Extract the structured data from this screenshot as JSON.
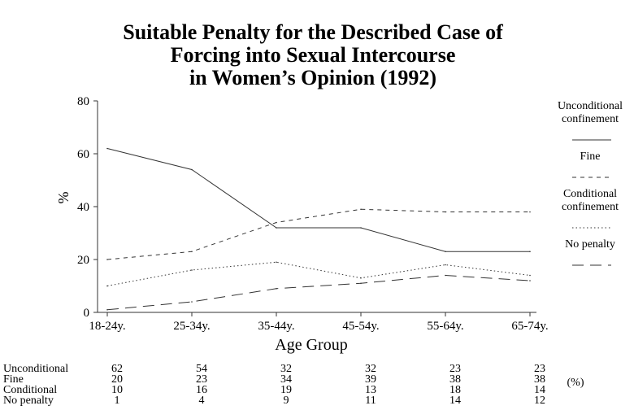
{
  "chart_data": {
    "type": "line",
    "title": [
      "Suitable Penalty for the Described Case of",
      "Forcing into Sexual Intercourse",
      "in Women’s Opinion (1992)"
    ],
    "xlabel": "Age Group",
    "ylabel": "%",
    "ylim": [
      0,
      80
    ],
    "yticks": [
      "0",
      "20",
      "40",
      "60",
      "80"
    ],
    "categories": [
      "18-24y.",
      "25-34y.",
      "35-44y.",
      "45-54y.",
      "55-64y.",
      "65-74y."
    ],
    "grid": false,
    "legend_position": "right",
    "series": [
      {
        "name": "Unconditional confinement",
        "name_lines": [
          "Unconditional",
          "confinement"
        ],
        "values": [
          62,
          54,
          32,
          32,
          23,
          23
        ],
        "dash": "solid",
        "color": "#333333"
      },
      {
        "name": "Fine",
        "name_lines": [
          "Fine"
        ],
        "values": [
          20,
          23,
          34,
          39,
          38,
          38
        ],
        "dash": "dashed-short",
        "color": "#333333"
      },
      {
        "name": "Conditional confinement",
        "name_lines": [
          "Conditional",
          "confinement"
        ],
        "values": [
          10,
          16,
          19,
          13,
          18,
          14
        ],
        "dash": "dotted",
        "color": "#333333"
      },
      {
        "name": "No penalty",
        "name_lines": [
          "No penalty"
        ],
        "values": [
          1,
          4,
          9,
          11,
          14,
          12
        ],
        "dash": "dashed-long",
        "color": "#333333"
      }
    ],
    "table": {
      "row_labels": [
        "Unconditional",
        "Fine",
        "Conditional",
        "No penalty"
      ],
      "unit": "(%)"
    }
  }
}
